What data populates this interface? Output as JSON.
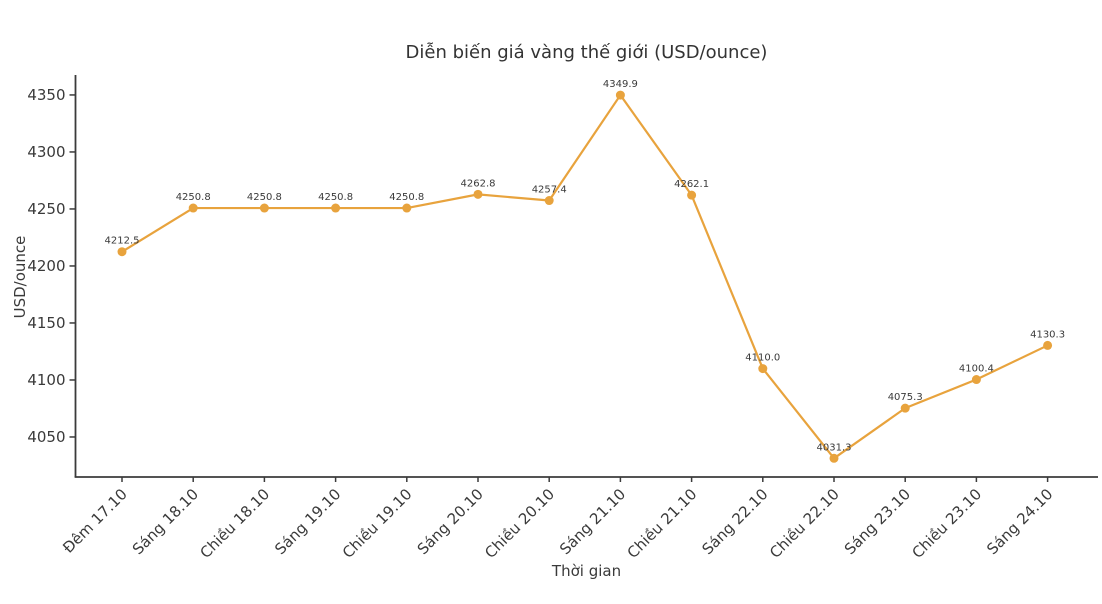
{
  "chart_data": {
    "type": "line",
    "title": "Diễn biến giá vàng thế giới (USD/ounce)",
    "xlabel": "Thời gian",
    "ylabel": "USD/ounce",
    "categories": [
      "Đêm 17.10",
      "Sáng 18.10",
      "Chiều 18.10",
      "Sáng 19.10",
      "Chiều 19.10",
      "Sáng 20.10",
      "Chiều 20.10",
      "Sáng 21.10",
      "Chiều 21.10",
      "Sáng 22.10",
      "Chiều 22.10",
      "Sáng 23.10",
      "Chiều 23.10",
      "Sáng 24.10"
    ],
    "values": [
      4212.5,
      4250.8,
      4250.8,
      4250.8,
      4250.8,
      4262.8,
      4257.4,
      4349.9,
      4262.1,
      4110.0,
      4031.3,
      4075.3,
      4100.4,
      4130.3
    ],
    "data_labels": [
      "4212.5",
      "4250.8",
      "4250.8",
      "4250.8",
      "4250.8",
      "4262.8",
      "4257.4",
      "4349.9",
      "4262.1",
      "4110.0",
      "4031.3",
      "4075.3",
      "4100.4",
      "4130.3"
    ],
    "yticks": [
      4050,
      4100,
      4150,
      4200,
      4250,
      4300,
      4350
    ],
    "ylim": [
      4014.9,
      4367.5
    ],
    "grid": false,
    "legend": null,
    "marker": "circle",
    "colors": {
      "line": "#e8a33d",
      "marker": "#e8a33d",
      "axis": "#3b3b3b",
      "tick_text": "#3a3a3a",
      "title_text": "#333333",
      "background": "#ffffff"
    }
  }
}
